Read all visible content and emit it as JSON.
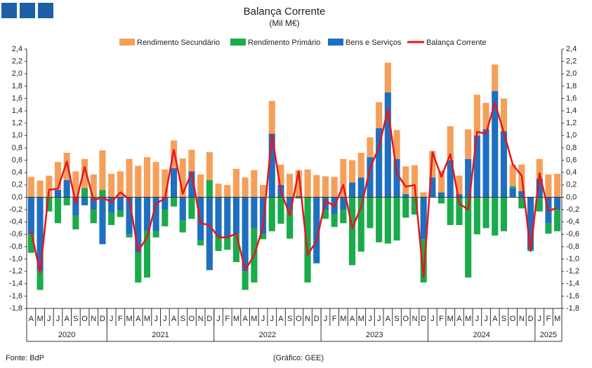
{
  "chart_data": {
    "type": "bar",
    "title": "Balança Corrente",
    "subtitle": "(Mil M€)",
    "source": "Fonte: BdP",
    "credit": "(Gráfico: GEE)",
    "groups": [
      {
        "year": "2020",
        "months": [
          "A",
          "M",
          "J",
          "J",
          "A",
          "S",
          "O",
          "N",
          "D"
        ]
      },
      {
        "year": "2021",
        "months": [
          "J",
          "F",
          "M",
          "A",
          "M",
          "J",
          "J",
          "A",
          "S",
          "O",
          "N",
          "D"
        ]
      },
      {
        "year": "2022",
        "months": [
          "J",
          "F",
          "M",
          "A",
          "M",
          "J",
          "J",
          "A",
          "S",
          "O",
          "N",
          "D"
        ]
      },
      {
        "year": "2023",
        "months": [
          "J",
          "F",
          "M",
          "A",
          "M",
          "J",
          "J",
          "A",
          "S",
          "O",
          "N",
          "D"
        ]
      },
      {
        "year": "2024",
        "months": [
          "J",
          "F",
          "M",
          "A",
          "M",
          "J",
          "J",
          "A",
          "S",
          "O",
          "N",
          "D"
        ]
      },
      {
        "year": "2025",
        "months": [
          "J",
          "F",
          "M"
        ]
      }
    ],
    "series": [
      {
        "name": "Rendimento Secundário",
        "type": "bar",
        "color": "#f5a05a",
        "values": [
          0.33,
          0.27,
          0.35,
          0.45,
          0.44,
          0.42,
          0.47,
          0.37,
          0.64,
          0.38,
          0.42,
          0.62,
          0.51,
          0.65,
          0.57,
          0.45,
          0.45,
          0.63,
          0.35,
          0.37,
          0.45,
          0.22,
          0.2,
          0.46,
          0.32,
          0.44,
          0.2,
          0.53,
          0.33,
          0.38,
          0.42,
          0.45,
          0.36,
          0.34,
          0.33,
          0.62,
          0.36,
          0.4,
          0.32,
          0.42,
          0.48,
          0.47,
          0.45,
          0.52,
          0.08,
          0.43,
          0.35,
          0.55,
          0.3,
          0.48,
          0.66,
          0.43,
          0.43,
          0.53,
          0.35,
          0.43,
          0.0,
          0.32,
          0.37,
          0.38
        ]
      },
      {
        "name": "Rendimento Primário",
        "type": "bar",
        "color": "#1aab4a",
        "values": [
          -0.3,
          -0.3,
          -0.23,
          -0.42,
          -0.13,
          -0.22,
          0.15,
          -0.22,
          0.12,
          -0.2,
          -0.1,
          -0.05,
          -0.48,
          -0.75,
          -0.1,
          -0.27,
          -0.15,
          -0.2,
          -0.35,
          -0.08,
          0.28,
          -0.22,
          -0.2,
          -0.45,
          -0.3,
          -0.88,
          -0.08,
          -0.55,
          -0.43,
          -0.47,
          -0.02,
          -1.38,
          0.0,
          -0.15,
          -0.2,
          -0.22,
          -1.1,
          -0.88,
          -0.5,
          -0.73,
          -0.75,
          -0.7,
          -0.33,
          -0.28,
          -0.7,
          0.0,
          -0.1,
          -0.45,
          -0.45,
          -1.3,
          -0.6,
          -0.5,
          -0.62,
          -0.55,
          0.03,
          -0.18,
          -0.02,
          -0.23,
          -0.17,
          -0.35
        ]
      },
      {
        "name": "Bens e Serviços",
        "type": "bar",
        "color": "#1f6fc0",
        "values": [
          -0.6,
          -1.2,
          0.0,
          0.12,
          0.28,
          -0.3,
          -0.13,
          -0.2,
          -0.76,
          -0.25,
          -0.22,
          -0.6,
          -0.9,
          -0.55,
          -0.55,
          -0.2,
          0.47,
          -0.37,
          0.42,
          -0.7,
          -1.18,
          -0.65,
          -0.65,
          -0.6,
          -1.2,
          -0.5,
          -0.6,
          1.03,
          0.2,
          -0.2,
          0.02,
          0.0,
          -1.07,
          -0.2,
          -0.28,
          -0.2,
          0.24,
          0.32,
          0.65,
          1.12,
          1.7,
          0.62,
          0.05,
          0.0,
          -0.68,
          0.32,
          0.08,
          0.6,
          0.05,
          0.62,
          1.0,
          1.1,
          1.72,
          1.07,
          0.15,
          0.1,
          -0.85,
          0.3,
          -0.42,
          -0.2
        ]
      },
      {
        "name": "Balança Corrente",
        "type": "line",
        "color": "#e8141b",
        "values": [
          -0.55,
          -1.22,
          0.12,
          0.14,
          0.58,
          -0.1,
          0.49,
          -0.05,
          0.0,
          -0.08,
          0.08,
          -0.03,
          -0.87,
          -0.65,
          -0.1,
          -0.02,
          0.77,
          0.06,
          0.4,
          -0.42,
          -0.45,
          -0.65,
          -0.65,
          -0.59,
          -1.18,
          -0.94,
          -0.48,
          1.01,
          0.1,
          -0.29,
          0.42,
          -0.93,
          -0.71,
          -0.05,
          -0.15,
          0.2,
          -0.5,
          -0.16,
          0.47,
          0.81,
          1.43,
          0.39,
          0.17,
          0.2,
          -1.3,
          0.73,
          0.33,
          0.7,
          -0.1,
          -0.2,
          1.06,
          1.03,
          1.53,
          1.05,
          0.53,
          0.35,
          -0.87,
          0.39,
          -0.22,
          -0.17
        ]
      }
    ],
    "ylim": [
      -1.8,
      2.4
    ],
    "yticks": [
      {
        "value": -1.8,
        "label": "-1,8"
      },
      {
        "value": -1.6,
        "label": "-1,6"
      },
      {
        "value": -1.4,
        "label": "-1,4"
      },
      {
        "value": -1.2,
        "label": "-1,2"
      },
      {
        "value": -1.0,
        "label": "-1,0"
      },
      {
        "value": -0.8,
        "label": "-0,8"
      },
      {
        "value": -0.6,
        "label": "-0,6"
      },
      {
        "value": -0.4,
        "label": "-0,4"
      },
      {
        "value": -0.2,
        "label": "-0,2"
      },
      {
        "value": 0,
        "label": "0,0"
      },
      {
        "value": 0.2,
        "label": "0,2"
      },
      {
        "value": 0.4,
        "label": "0,4"
      },
      {
        "value": 0.6,
        "label": "0,6"
      },
      {
        "value": 0.8,
        "label": "0,8"
      },
      {
        "value": 1.0,
        "label": "1,0"
      },
      {
        "value": 1.2,
        "label": "1,2"
      },
      {
        "value": 1.4,
        "label": "1,4"
      },
      {
        "value": 1.6,
        "label": "1,6"
      },
      {
        "value": 1.8,
        "label": "1,8"
      },
      {
        "value": 2.0,
        "label": "2,0"
      },
      {
        "value": 2.2,
        "label": "2,2"
      },
      {
        "value": 2.4,
        "label": "2,4"
      }
    ],
    "y2lim": [
      -1.8,
      2.4
    ],
    "y2ticks": [
      {
        "value": -1.8,
        "label": "-1,8"
      },
      {
        "value": -1.6,
        "label": "-1,6"
      },
      {
        "value": -1.4,
        "label": "-1,4"
      },
      {
        "value": -1.2,
        "label": "-1,2"
      },
      {
        "value": -1.0,
        "label": "-1,0"
      },
      {
        "value": -0.8,
        "label": "-0,8"
      },
      {
        "value": -0.6,
        "label": "-0,6"
      },
      {
        "value": -0.4,
        "label": "-0,4"
      },
      {
        "value": -0.2,
        "label": "-0,2"
      },
      {
        "value": 0,
        "label": "0,0"
      },
      {
        "value": 0.2,
        "label": "0,2"
      },
      {
        "value": 0.4,
        "label": "0,4"
      },
      {
        "value": 0.6,
        "label": "0,6"
      },
      {
        "value": 0.8,
        "label": "0,8"
      },
      {
        "value": 1.0,
        "label": "1,0"
      },
      {
        "value": 1.2,
        "label": "1,2"
      },
      {
        "value": 1.4,
        "label": "1,4"
      },
      {
        "value": 1.6,
        "label": "1,6"
      },
      {
        "value": 1.8,
        "label": "1,8"
      },
      {
        "value": 2.0,
        "label": "2,0"
      },
      {
        "value": 2.2,
        "label": "2,2"
      },
      {
        "value": 2.4,
        "label": "2,4"
      }
    ]
  }
}
